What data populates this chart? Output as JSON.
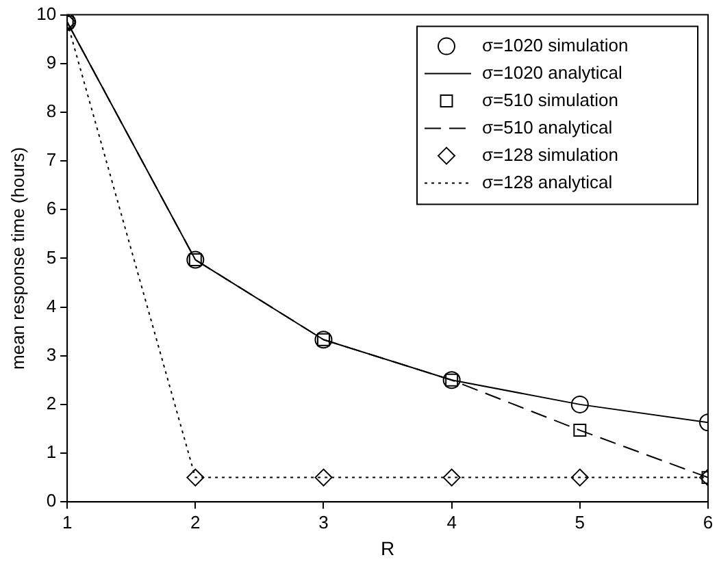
{
  "chart_data": {
    "type": "line",
    "xlabel": "R",
    "ylabel": "mean response time (hours)",
    "x": [
      1,
      2,
      3,
      4,
      5,
      6
    ],
    "xlim": [
      1,
      6
    ],
    "xticks": [
      1,
      2,
      3,
      4,
      5,
      6
    ],
    "ylim": [
      0,
      10
    ],
    "yticks": [
      0,
      1,
      2,
      3,
      4,
      5,
      6,
      7,
      8,
      9,
      10
    ],
    "grid": false,
    "legend": "top right",
    "series": [
      {
        "name": "σ=1020 simulation",
        "type": "scatter",
        "marker": "circle",
        "color": "#000000",
        "values": [
          9.85,
          4.97,
          3.33,
          2.5,
          2.0,
          1.63
        ]
      },
      {
        "name": "σ=1020 analytical",
        "type": "line",
        "line_style": "solid",
        "color": "#000000",
        "values": [
          9.85,
          4.97,
          3.33,
          2.5,
          2.0,
          1.63
        ]
      },
      {
        "name": "σ=510 simulation",
        "type": "scatter",
        "marker": "square",
        "color": "#000000",
        "values": [
          9.85,
          4.97,
          3.33,
          2.5,
          1.47,
          0.5
        ]
      },
      {
        "name": "σ=510 analytical",
        "type": "line",
        "line_style": "dashed",
        "color": "#000000",
        "values": [
          9.85,
          4.97,
          3.33,
          2.5,
          1.47,
          0.5
        ]
      },
      {
        "name": "σ=128 simulation",
        "type": "scatter",
        "marker": "diamond",
        "color": "#000000",
        "values": [
          9.85,
          0.5,
          0.5,
          0.5,
          0.5,
          0.5
        ]
      },
      {
        "name": "σ=128 analytical",
        "type": "line",
        "line_style": "dotted",
        "color": "#000000",
        "values": [
          9.85,
          0.5,
          0.5,
          0.5,
          0.5,
          0.5
        ]
      }
    ]
  }
}
